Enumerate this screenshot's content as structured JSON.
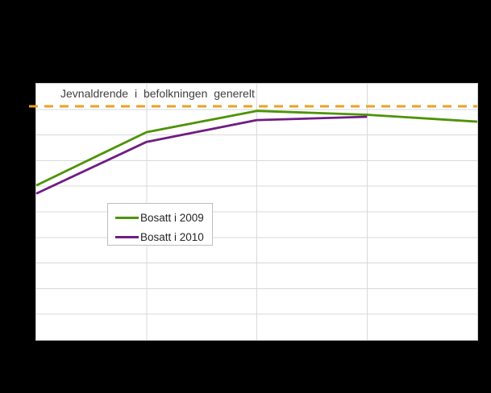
{
  "colors": {
    "background": "#000000",
    "plot_background": "#ffffff",
    "grid": "#d9d9d9",
    "plot_border": "#cfcfcf",
    "text": "#3f3f3f"
  },
  "chart_data": {
    "type": "line",
    "title": "",
    "xlabel": "",
    "ylabel": "",
    "x_indices": [
      1,
      2,
      3,
      4,
      5
    ],
    "x_tick_labels": [],
    "ylim": [
      0,
      100
    ],
    "grid": {
      "horizontal_step": 10,
      "vertical_divisions": 4,
      "visible": true
    },
    "series": [
      {
        "name": "Bosatt i 2009",
        "color": "#4e9305",
        "values": [
          60.3,
          81.1,
          89.4,
          87.9,
          85.2
        ]
      },
      {
        "name": "Bosatt i 2010",
        "color": "#6f1d82",
        "values": [
          57.1,
          77.3,
          85.8,
          87.1
        ]
      }
    ],
    "reference_line": {
      "label": "Jevnaldrende i befolkningen generelt",
      "value": 91.2,
      "color": "#e9a227",
      "style": "dashed"
    },
    "legend": {
      "position": "inside-left",
      "items": [
        "Bosatt i 2009",
        "Bosatt i 2010"
      ]
    }
  }
}
